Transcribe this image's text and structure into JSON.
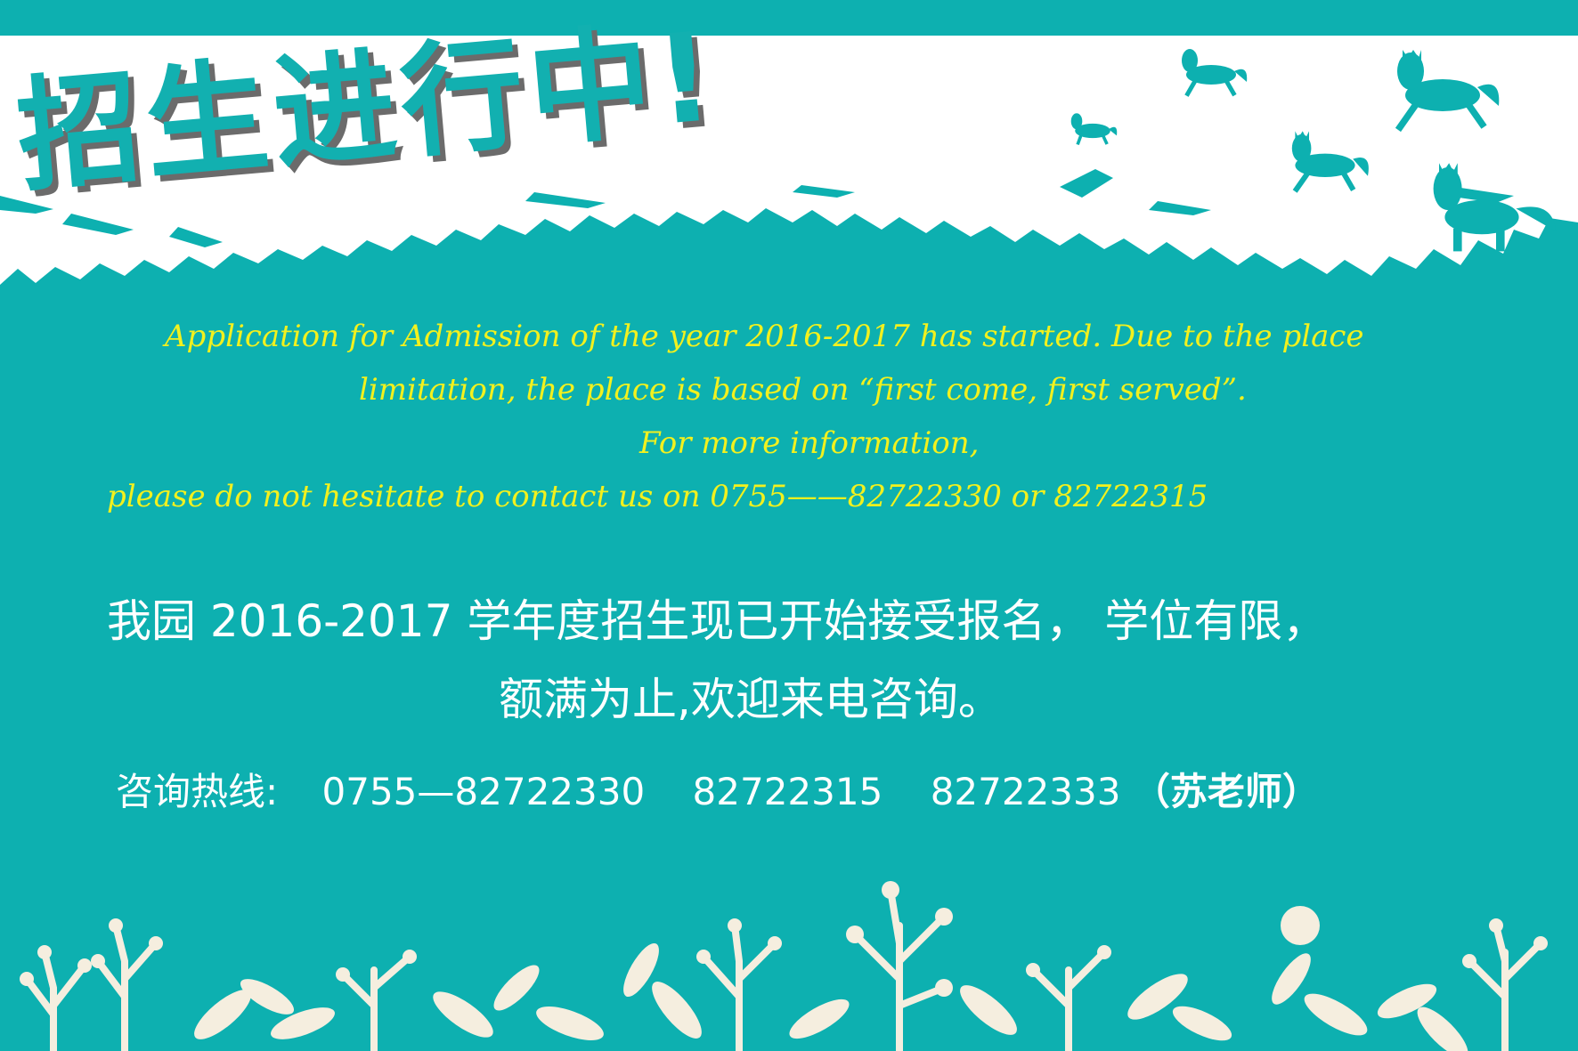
{
  "poster": {
    "title": "招生进行中!",
    "english_lines": [
      "Application for Admission of the year  2016-2017   has started. Due to the place",
      "limitation, the place is based on “first come, first served”.",
      "For more information,",
      "please do not hesitate to contact us on  0755——82722330  or  82722315"
    ],
    "chinese_lines": [
      "我园 2016-2017 学年度招生现已开始接受报名，  学位有限，",
      "额满为止,欢迎来电咨询。"
    ],
    "hotline": {
      "label": "咨询热线:",
      "phone_1": "0755—82722330",
      "phone_2": "82722315",
      "phone_3": "82722333",
      "contact": "（苏老师）"
    }
  },
  "colors": {
    "background_teal": "#0db0b0",
    "english_text_yellow": "#f2f11e",
    "chinese_text_white": "#ffffff",
    "title_shadow_gray": "#6b6b6b",
    "foliage_cream": "#f5eedf"
  },
  "decorations": [
    "horse-silhouettes",
    "brush-stroke-edge",
    "leaf-branch-silhouettes"
  ]
}
